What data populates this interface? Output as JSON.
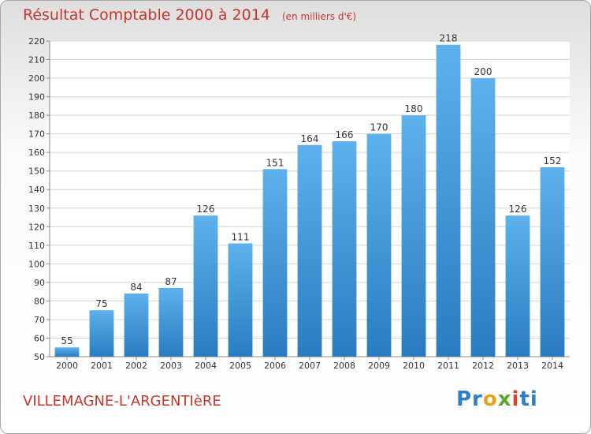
{
  "header": {
    "title": "Résultat Comptable 2000 à 2014",
    "subtitle": "(en milliers d'€)"
  },
  "footer": {
    "commune": "VILLEMAGNE-L'ARGENTIèRE",
    "logo_text": "Proxiti"
  },
  "colors": {
    "bar": "#3a8fd4",
    "title": "#c4362e"
  },
  "chart_data": {
    "type": "bar",
    "categories": [
      "2000",
      "2001",
      "2002",
      "2003",
      "2004",
      "2005",
      "2006",
      "2007",
      "2008",
      "2009",
      "2010",
      "2011",
      "2012",
      "2013",
      "2014"
    ],
    "values": [
      55,
      75,
      84,
      87,
      126,
      111,
      151,
      164,
      166,
      170,
      180,
      218,
      200,
      126,
      152
    ],
    "title": "Résultat Comptable 2000 à 2014",
    "subtitle": "(en milliers d'€)",
    "ylim": [
      50,
      220
    ],
    "yticks": [
      50,
      60,
      70,
      80,
      90,
      100,
      110,
      120,
      130,
      140,
      150,
      160,
      170,
      180,
      190,
      200,
      210,
      220
    ],
    "grid": true,
    "data_labels": true
  }
}
